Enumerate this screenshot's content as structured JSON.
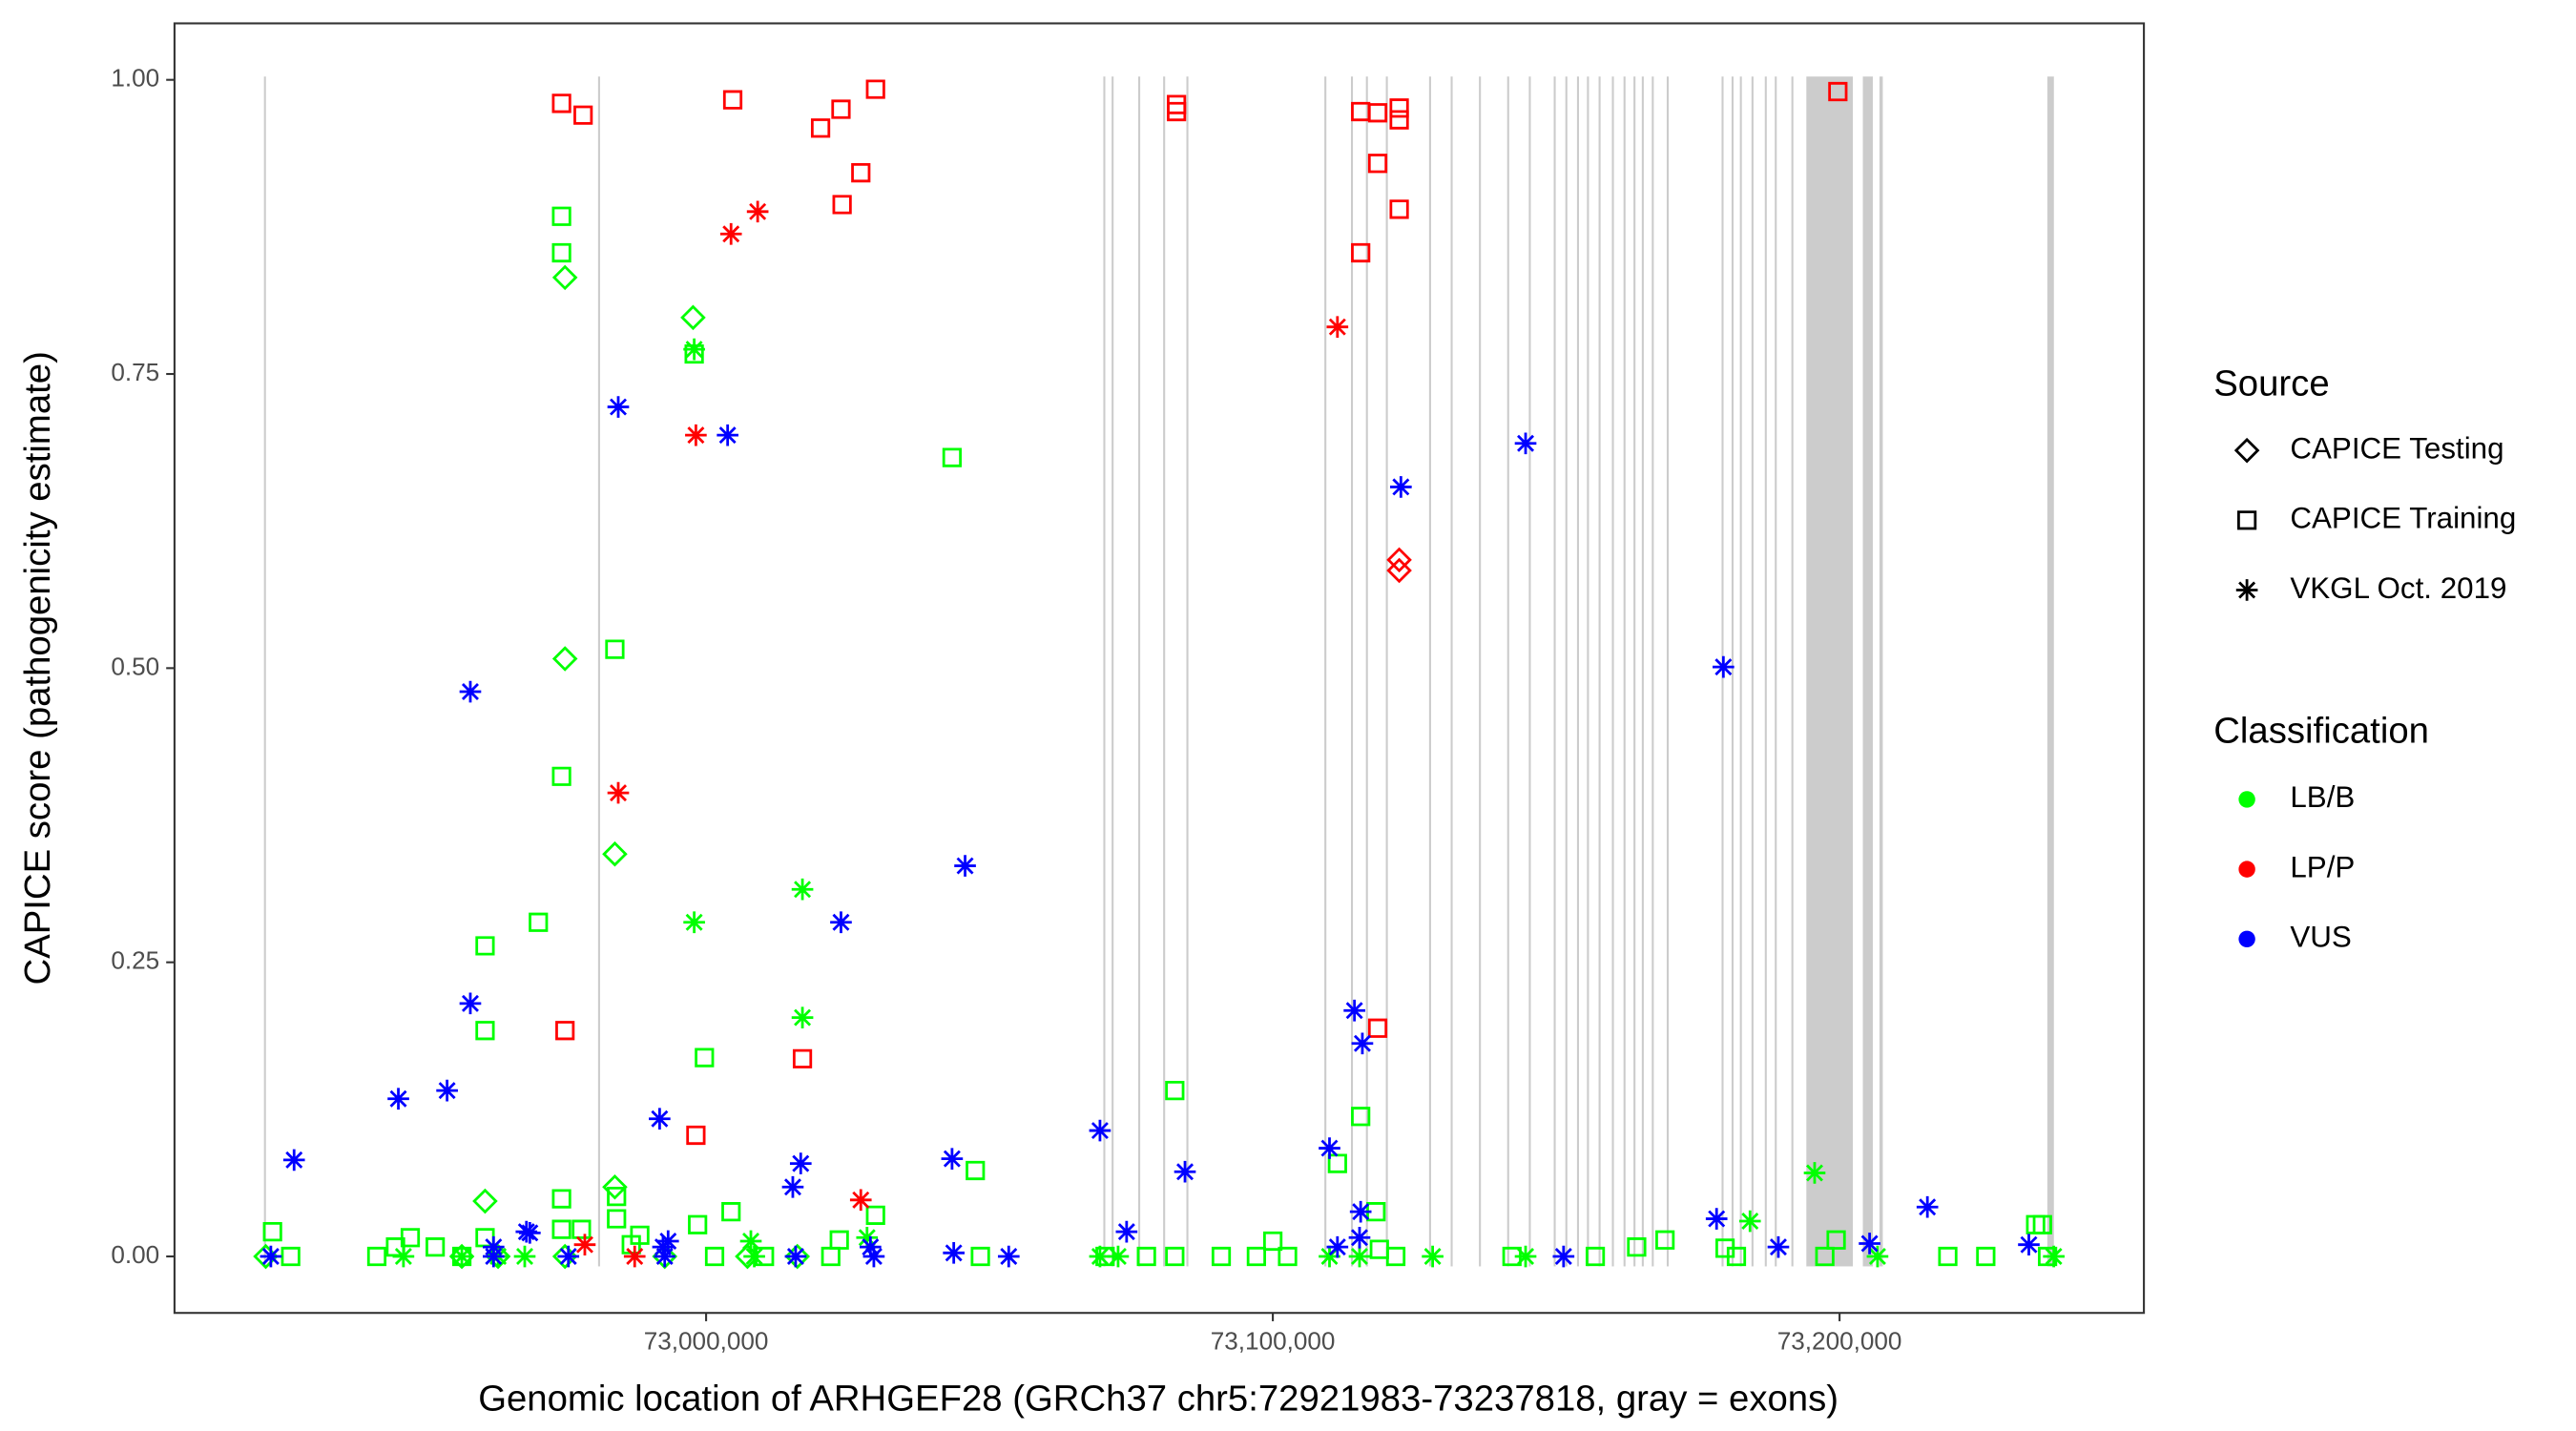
{
  "chart_data": {
    "type": "scatter",
    "xlabel": "Genomic location of ARHGEF28 (GRCh37 chr5:72921983-73237818, gray = exons)",
    "ylabel": "CAPICE score (pathogenicity estimate)",
    "xlim": [
      72906200,
      73253700
    ],
    "ylim": [
      -0.048,
      1.048
    ],
    "xticks": [
      {
        "value": 73000000,
        "label": "73,000,000"
      },
      {
        "value": 73100000,
        "label": "73,100,000"
      },
      {
        "value": 73200000,
        "label": "73,200,000"
      }
    ],
    "yticks": [
      {
        "value": 0,
        "label": "0.00"
      },
      {
        "value": 0.25,
        "label": "0.25"
      },
      {
        "value": 0.5,
        "label": "0.50"
      },
      {
        "value": 0.75,
        "label": "0.75"
      },
      {
        "value": 1,
        "label": "1.00"
      }
    ],
    "grid": false,
    "exon_color": "#cccccc",
    "exons": [
      [
        72921983,
        72922200
      ],
      [
        72980938,
        72981138
      ],
      [
        73070089,
        73070289
      ],
      [
        73071555,
        73071755
      ],
      [
        73076248,
        73076448
      ],
      [
        73080647,
        73080847
      ],
      [
        73084752,
        73084952
      ],
      [
        73109093,
        73109293
      ],
      [
        73113785,
        73113985
      ],
      [
        73116424,
        73116624
      ],
      [
        73119943,
        73120143
      ],
      [
        73127568,
        73127768
      ],
      [
        73131380,
        73131580
      ],
      [
        73136366,
        73136566
      ],
      [
        73141351,
        73141551
      ],
      [
        73145164,
        73145364
      ],
      [
        73149563,
        73149763
      ],
      [
        73151615,
        73151815
      ],
      [
        73153668,
        73153868
      ],
      [
        73155428,
        73155628
      ],
      [
        73157481,
        73157681
      ],
      [
        73159827,
        73160027
      ],
      [
        73161880,
        73162080
      ],
      [
        73163639,
        73163839
      ],
      [
        73165105,
        73165305
      ],
      [
        73166865,
        73167065
      ],
      [
        73169504,
        73169704
      ],
      [
        73179182,
        73179382
      ],
      [
        73180941,
        73181141
      ],
      [
        73182408,
        73182608
      ],
      [
        73184461,
        73184661
      ],
      [
        73186807,
        73187007
      ],
      [
        73188566,
        73188766
      ],
      [
        73191499,
        73191699
      ],
      [
        73194138,
        73202349
      ],
      [
        73204109,
        73205869
      ],
      [
        73207042,
        73207628
      ],
      [
        73236661,
        73237818
      ]
    ],
    "source_title": "Source",
    "sources": [
      {
        "name": "CAPICE Testing",
        "shape": "diamond"
      },
      {
        "name": "CAPICE Training",
        "shape": "square"
      },
      {
        "name": "VKGL Oct. 2019",
        "shape": "asterisk"
      }
    ],
    "classification_title": "Classification",
    "classifications": [
      {
        "name": "LB/B",
        "color": "#00ff00"
      },
      {
        "name": "LP/P",
        "color": "#ff0000"
      },
      {
        "name": "VUS",
        "color": "#0000ff"
      }
    ],
    "series": [
      {
        "source": "CAPICE Training",
        "classification": "LB/B",
        "x": [
          72923500,
          72926700,
          72941900,
          72945200,
          72947800,
          72952200,
          72956900,
          72961000,
          72961000,
          72961000,
          72970400,
          72974500,
          72974500,
          72974500,
          72974500,
          72974500,
          72978000,
          72983900,
          72984200,
          72984200,
          72986800,
          72988300,
          72997900,
          72999700,
          72998500,
          73001500,
          73004400,
          73010300,
          73023500,
          73029900,
          73022000,
          73043400,
          73047500,
          73048400,
          73070400,
          73077700,
          73082700,
          73082700,
          73090900,
          73097100,
          73100000,
          73102600,
          73111400,
          73115500,
          73118200,
          73118800,
          73121700,
          73142200,
          73156900,
          73164200,
          73169200,
          73179800,
          73181800,
          73197400,
          73199400,
          73219100,
          73225800,
          73234600,
          73235800,
          73236700
        ],
        "values": [
          0.021,
          0,
          0,
          0.008,
          0.016,
          0.008,
          0,
          0.264,
          0.192,
          0.016,
          0.284,
          0.884,
          0.853,
          0.408,
          0.049,
          0.023,
          0.023,
          0.516,
          0.051,
          0.032,
          0.01,
          0.018,
          0.767,
          0.169,
          0.027,
          0,
          0.038,
          0,
          0.014,
          0.035,
          0,
          0.679,
          0.073,
          0,
          0,
          0,
          0.141,
          0,
          0,
          0,
          0.013,
          0,
          0.079,
          0.119,
          0.038,
          0.006,
          0,
          0,
          0,
          0.008,
          0.014,
          0.007,
          0,
          0,
          0.014,
          0,
          0,
          0.027,
          0.027,
          0
        ]
      },
      {
        "source": "CAPICE Training",
        "classification": "LP/P",
        "x": [
          72974500,
          72978300,
          72975100,
          73004700,
          73020200,
          73023800,
          73029900,
          73027300,
          73024000,
          72998200,
          73017000,
          73083000,
          73083000,
          73115500,
          73118500,
          73122300,
          73122300,
          73118500,
          73122300,
          73115500,
          73118500,
          73199700
        ],
        "values": [
          0.98,
          0.97,
          0.192,
          0.983,
          0.959,
          0.975,
          0.992,
          0.921,
          0.894,
          0.103,
          0.168,
          0.979,
          0.973,
          0.973,
          0.972,
          0.976,
          0.966,
          0.929,
          0.89,
          0.853,
          0.194,
          0.99
        ]
      },
      {
        "source": "CAPICE Testing",
        "classification": "LB/B",
        "x": [
          72961000,
          72975100,
          72975100,
          72983900,
          72983900,
          72997700,
          72922300,
          72956900,
          72963300,
          72975100,
          72992700,
          73007300,
          73016100
        ],
        "values": [
          0.047,
          0.832,
          0.508,
          0.342,
          0.059,
          0.798,
          0,
          0,
          0,
          0,
          0,
          0,
          0
        ]
      },
      {
        "source": "CAPICE Testing",
        "classification": "LP/P",
        "x": [
          73122300,
          73122300
        ],
        "values": [
          0.592,
          0.583
        ]
      },
      {
        "source": "VKGL Oct. 2019",
        "classification": "LB/B",
        "x": [
          72946600,
          72956900,
          72963300,
          72968000,
          72997900,
          72997900,
          73007900,
          73008500,
          73017000,
          73017000,
          73028400,
          73069500,
          73072700,
          73110000,
          73115300,
          73128200,
          73144600,
          73184200,
          73195600,
          73206700,
          73237800
        ],
        "values": [
          0,
          0,
          0,
          0,
          0.771,
          0.284,
          0.013,
          0,
          0.312,
          0.203,
          0.016,
          0,
          0,
          0,
          0,
          0,
          0,
          0.03,
          0.071,
          0,
          0
        ]
      },
      {
        "source": "VKGL Oct. 2019",
        "classification": "LP/P",
        "x": [
          72978600,
          72987400,
          72984500,
          72998200,
          73004400,
          73009100,
          73027300,
          73111400
        ],
        "values": [
          0.01,
          0,
          0.394,
          0.698,
          0.869,
          0.888,
          0.048,
          0.79
        ]
      },
      {
        "source": "VKGL Oct. 2019",
        "classification": "VUS",
        "x": [
          72923200,
          72927300,
          72945700,
          72954300,
          72958400,
          72958400,
          72962500,
          72962500,
          72968300,
          72968900,
          72975700,
          72984500,
          72991800,
          72992400,
          72992700,
          72993300,
          73003800,
          73015300,
          73016700,
          73015800,
          73023800,
          73029000,
          73029600,
          73043400,
          73043700,
          73045700,
          73053400,
          73069500,
          73074200,
          73084500,
          73110000,
          73111400,
          73114400,
          73115300,
          73115500,
          73115800,
          73122600,
          73144600,
          73151300,
          73178300,
          73179500,
          73189200,
          73205300,
          73215500,
          73233400
        ],
        "values": [
          0,
          0.082,
          0.134,
          0.141,
          0.215,
          0.48,
          0.008,
          0,
          0.021,
          0.02,
          0,
          0.722,
          0.117,
          0.008,
          0,
          0.013,
          0.698,
          0.059,
          0.079,
          0,
          0.284,
          0.008,
          0,
          0.083,
          0.003,
          0.332,
          0,
          0.107,
          0.021,
          0.072,
          0.092,
          0.008,
          0.209,
          0.016,
          0.038,
          0.181,
          0.654,
          0.691,
          0,
          0.032,
          0.501,
          0.008,
          0.011,
          0.042,
          0.01
        ]
      }
    ]
  }
}
